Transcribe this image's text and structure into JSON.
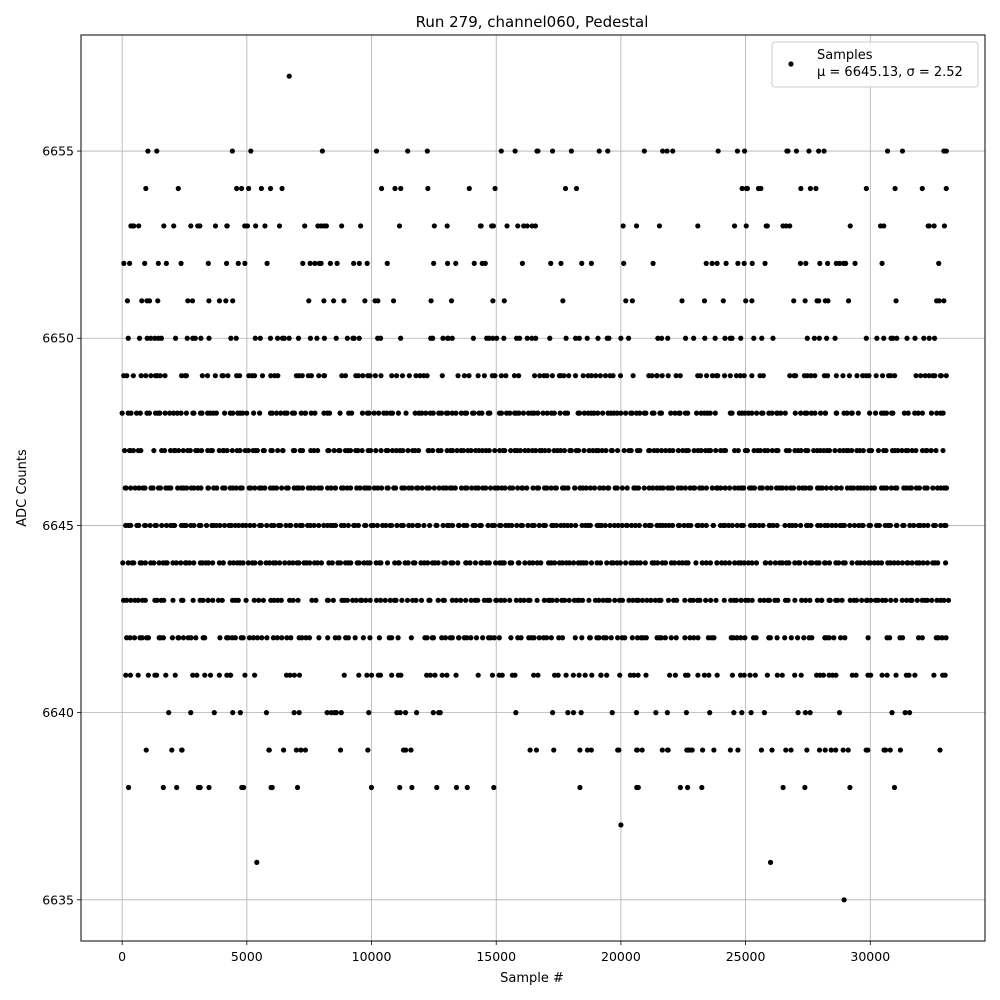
{
  "chart_data": {
    "type": "scatter",
    "title": "Run 279, channel060, Pedestal",
    "xlabel": "Sample #",
    "ylabel": "ADC Counts",
    "xlim": [
      -1650,
      34600
    ],
    "ylim": [
      6633.9,
      6658.1
    ],
    "xticks": [
      0,
      5000,
      10000,
      15000,
      20000,
      25000,
      30000
    ],
    "yticks": [
      6635,
      6640,
      6645,
      6650,
      6655
    ],
    "grid": true,
    "legend_position": "top-right",
    "legend": {
      "label": "Samples",
      "stats": "μ = 6645.13, σ = 2.52"
    },
    "n_samples": 33100,
    "series": [
      {
        "name": "Samples",
        "color": "#000000",
        "dense_levels": [
          6640,
          6641,
          6642,
          6643,
          6644,
          6645,
          6646,
          6647,
          6648,
          6649,
          6650,
          6651,
          6652
        ],
        "sparse_levels": [
          6638,
          6639,
          6653,
          6654,
          6655
        ],
        "outliers": [
          {
            "x": 6700,
            "y": 6657
          },
          {
            "x": 5400,
            "y": 6636
          },
          {
            "x": 20000,
            "y": 6637
          },
          {
            "x": 26000,
            "y": 6636
          },
          {
            "x": 28950,
            "y": 6635
          },
          {
            "x": 10200,
            "y": 6655
          },
          {
            "x": 11450,
            "y": 6655
          },
          {
            "x": 21850,
            "y": 6655
          },
          {
            "x": 23900,
            "y": 6655
          },
          {
            "x": 33050,
            "y": 6655
          }
        ]
      }
    ]
  }
}
